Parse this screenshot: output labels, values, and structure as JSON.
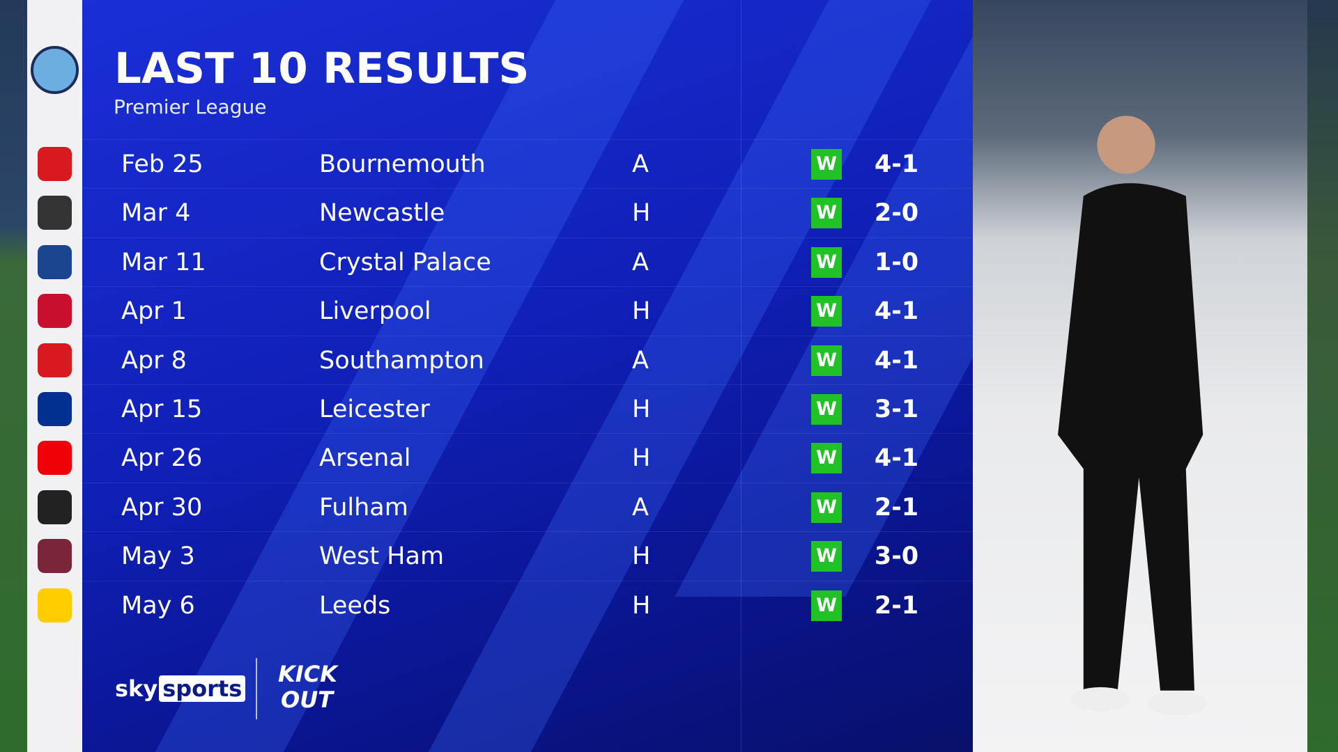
{
  "header": {
    "title": "LAST 10 RESULTS",
    "subtitle": "Premier League",
    "team_crest": "manchester-city-crest"
  },
  "results": [
    {
      "date": "Feb 25",
      "opponent": "Bournemouth",
      "venue": "A",
      "result": "W",
      "score": "4-1",
      "crest": "bournemouth-crest",
      "color": "#d71920"
    },
    {
      "date": "Mar 4",
      "opponent": "Newcastle",
      "venue": "H",
      "result": "W",
      "score": "2-0",
      "crest": "newcastle-crest",
      "color": "#333333"
    },
    {
      "date": "Mar 11",
      "opponent": "Crystal Palace",
      "venue": "A",
      "result": "W",
      "score": "1-0",
      "crest": "crystal-palace-crest",
      "color": "#1b458f"
    },
    {
      "date": "Apr 1",
      "opponent": "Liverpool",
      "venue": "H",
      "result": "W",
      "score": "4-1",
      "crest": "liverpool-crest",
      "color": "#c8102e"
    },
    {
      "date": "Apr 8",
      "opponent": "Southampton",
      "venue": "A",
      "result": "W",
      "score": "4-1",
      "crest": "southampton-crest",
      "color": "#d71920"
    },
    {
      "date": "Apr 15",
      "opponent": "Leicester",
      "venue": "H",
      "result": "W",
      "score": "3-1",
      "crest": "leicester-crest",
      "color": "#003090"
    },
    {
      "date": "Apr 26",
      "opponent": "Arsenal",
      "venue": "H",
      "result": "W",
      "score": "4-1",
      "crest": "arsenal-crest",
      "color": "#ef0107"
    },
    {
      "date": "Apr 30",
      "opponent": "Fulham",
      "venue": "A",
      "result": "W",
      "score": "2-1",
      "crest": "fulham-crest",
      "color": "#222222"
    },
    {
      "date": "May 3",
      "opponent": "West Ham",
      "venue": "H",
      "result": "W",
      "score": "3-0",
      "crest": "west-ham-crest",
      "color": "#7a263a"
    },
    {
      "date": "May 6",
      "opponent": "Leeds",
      "venue": "H",
      "result": "W",
      "score": "2-1",
      "crest": "leeds-crest",
      "color": "#ffcd00"
    }
  ],
  "colors": {
    "win": "#21c226",
    "panel": "#1020b8"
  },
  "footer": {
    "broadcaster_a": "sky",
    "broadcaster_b": "sports",
    "partner_logo": "KICK IT OUT"
  }
}
